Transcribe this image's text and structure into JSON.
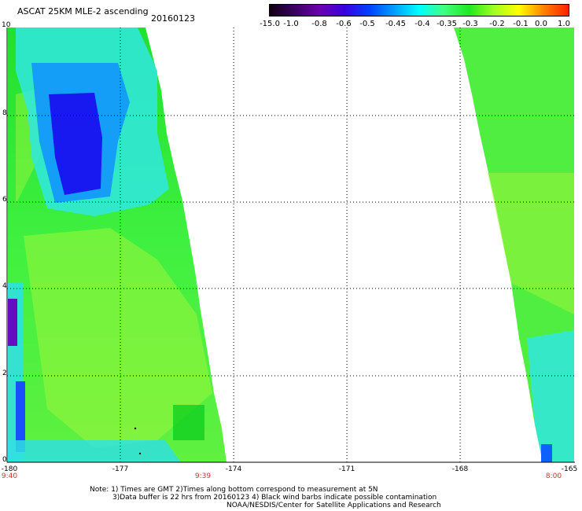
{
  "header": {
    "title": "ASCAT 25KM MLE-2 ascending",
    "date": "20160123"
  },
  "colorbar": {
    "labels": [
      "-15.0",
      "-1.0",
      "-0.8",
      "-0.6",
      "-0.5",
      "-0.45",
      "-0.4",
      "-0.35",
      "-0.3",
      "-0.2",
      "-0.1",
      "0.0",
      "1.0"
    ],
    "colors": [
      "#120012",
      "#3a0060",
      "#6a00b0",
      "#3a00e0",
      "#0040ff",
      "#00a0ff",
      "#00ffff",
      "#40ff80",
      "#20e820",
      "#a0ff20",
      "#ffff00",
      "#ff8000",
      "#ff2000"
    ]
  },
  "map": {
    "lat_labels": [
      "10",
      "8",
      "6",
      "4",
      "2",
      "0"
    ],
    "lon_labels": [
      "-180",
      "-177",
      "-174",
      "-171",
      "-168",
      "-165"
    ],
    "time_labels": [
      "9:40",
      "9:39",
      "8:00"
    ]
  },
  "notes": {
    "line1": "Note: 1) Times are GMT 2)Times along bottom correspond to measurement at 5N",
    "line2": "3)Data buffer is 22 hrs from 20160123 4) Black wind barbs indicate possible contamination",
    "line3": "NOAA/NESDIS/Center for Satellite Applications and Research"
  }
}
